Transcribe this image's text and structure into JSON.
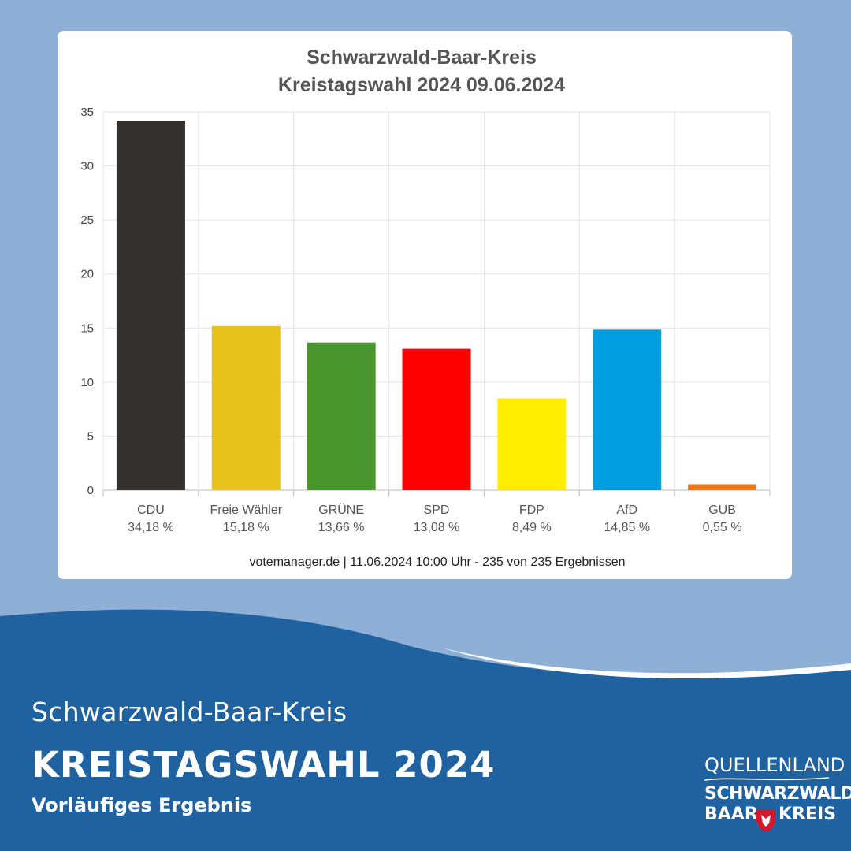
{
  "chart_data": {
    "type": "bar",
    "title": "Schwarzwald-Baar-Kreis",
    "subtitle": "Kreistagswahl 2024 09.06.2024",
    "categories": [
      "CDU",
      "Freie Wähler",
      "GRÜNE",
      "SPD",
      "FDP",
      "AfD",
      "GUB"
    ],
    "value_labels": [
      "34,18 %",
      "15,18 %",
      "13,66 %",
      "13,08 %",
      "8,49 %",
      "14,85 %",
      "0,55 %"
    ],
    "values": [
      34.18,
      15.18,
      13.66,
      13.08,
      8.49,
      14.85,
      0.55
    ],
    "colors": [
      "#33302e",
      "#e6c31b",
      "#4a962e",
      "#ff0000",
      "#ffee00",
      "#009ee0",
      "#f07814"
    ],
    "ylim": [
      0,
      35
    ],
    "yticks": [
      0,
      5,
      10,
      15,
      20,
      25,
      30,
      35
    ],
    "grid": true,
    "legend": "none",
    "source": "votemanager.de | 11.06.2024 10:00 Uhr - 235 von 235 Ergebnissen"
  },
  "footer": {
    "district": "Schwarzwald-Baar-Kreis",
    "headline": "KREISTAGSWAHL 2024",
    "note": "Vorläufiges Ergebnis"
  },
  "logo": {
    "line1": "QUELLENLAND",
    "line2": "SCHWARZWALD",
    "line3": "BAAR",
    "line4": "KREIS"
  },
  "colors": {
    "background": "#8fb0d6",
    "footer": "#2061a0",
    "wave_highlight": "#ffffff"
  }
}
